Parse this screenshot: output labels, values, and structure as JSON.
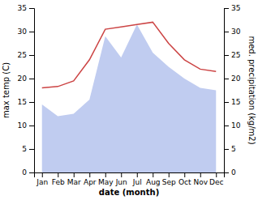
{
  "chart_data": {
    "type": "line",
    "categories": [
      "Jan",
      "Feb",
      "Mar",
      "Apr",
      "May",
      "Jun",
      "Jul",
      "Aug",
      "Sep",
      "Oct",
      "Nov",
      "Dec"
    ],
    "xlabel": "date (month)",
    "ylabel": "max temp (C)",
    "y2label": "med. precipitation (kg/m2)",
    "ylim": [
      0,
      35
    ],
    "yticks": [
      0,
      5,
      10,
      15,
      20,
      25,
      30,
      35
    ],
    "y2lim": [
      0,
      35
    ],
    "y2ticks": [
      0,
      5,
      10,
      15,
      20,
      25,
      30,
      35
    ],
    "series": [
      {
        "type": "area",
        "axis": "y2",
        "color": "#c0ccf0",
        "values": [
          14.5,
          12.0,
          12.5,
          15.5,
          29.0,
          24.5,
          31.5,
          25.5,
          22.5,
          20.0,
          18.0,
          17.5
        ]
      },
      {
        "type": "line",
        "color": "#cc4444",
        "values": [
          18.0,
          18.3,
          19.5,
          24.0,
          30.5,
          31.0,
          31.5,
          32.0,
          27.5,
          24.0,
          22.0,
          21.5
        ]
      }
    ]
  }
}
